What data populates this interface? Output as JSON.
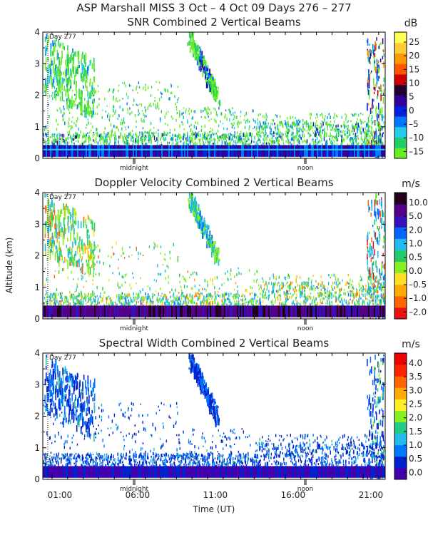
{
  "title": "ASP Marshall MISS    3 Oct –   4 Oct 09 Days 276 – 277",
  "ylabel": "Altitude (km)",
  "xlabel": "Time (UT)",
  "x_ticks": [
    "01:00",
    "06:00",
    "11:00",
    "16:00",
    "21:00"
  ],
  "annotations": {
    "day": "Day 277",
    "midnight": "midnight",
    "noon": "noon"
  },
  "colors": {
    "snr": [
      "#66ee22",
      "#22cc66",
      "#22ccee",
      "#0077ff",
      "#0022dd",
      "#330099",
      "#220033",
      "#cc0000",
      "#ff5500",
      "#ff9900",
      "#ffcc33",
      "#ffff55"
    ],
    "vel": [
      "#ee1111",
      "#ff6600",
      "#ffaa00",
      "#ffdd22",
      "#88ee22",
      "#22cc66",
      "#22bbee",
      "#0066ff",
      "#3311bb",
      "#550088",
      "#220022"
    ],
    "wid": [
      "#4400aa",
      "#0022cc",
      "#0077ff",
      "#22bbee",
      "#22cc88",
      "#88ee22",
      "#ffee22",
      "#ffaa00",
      "#ff6600",
      "#ff2200",
      "#ee0000"
    ]
  },
  "chart_data": [
    {
      "type": "heatmap",
      "title": "SNR Combined 2 Vertical Beams",
      "colorbar_unit": "dB",
      "colorbar_ticks": [
        "25",
        "20",
        "15",
        "10",
        "5",
        "0",
        "–5",
        "–10",
        "–15"
      ],
      "ylim": [
        0,
        4
      ],
      "y_ticks": [
        "0",
        "1",
        "2",
        "3",
        "4"
      ],
      "x_ticks": [
        "01:00",
        "06:00",
        "11:00",
        "16:00",
        "21:00"
      ]
    },
    {
      "type": "heatmap",
      "title": "Doppler Velocity Combined 2 Vertical Beams",
      "colorbar_unit": "m/s",
      "colorbar_ticks": [
        "10.0",
        "5.0",
        "2.0",
        "1.0",
        "0.5",
        "0.0",
        "–0.5",
        "–1.0",
        "–2.0"
      ],
      "ylim": [
        0,
        4
      ],
      "y_ticks": [
        "0",
        "1",
        "2",
        "3",
        "4"
      ],
      "x_ticks": [
        "01:00",
        "06:00",
        "11:00",
        "16:00",
        "21:00"
      ]
    },
    {
      "type": "heatmap",
      "title": "Spectral Width Combined 2 Vertical Beams",
      "colorbar_unit": "m/s",
      "colorbar_ticks": [
        "4.0",
        "3.5",
        "3.0",
        "2.5",
        "2.0",
        "1.5",
        "1.0",
        "0.5",
        "0.0"
      ],
      "ylim": [
        0,
        4
      ],
      "y_ticks": [
        "0",
        "1",
        "2",
        "3",
        "4"
      ],
      "x_ticks": [
        "01:00",
        "06:00",
        "11:00",
        "16:00",
        "21:00"
      ]
    }
  ]
}
